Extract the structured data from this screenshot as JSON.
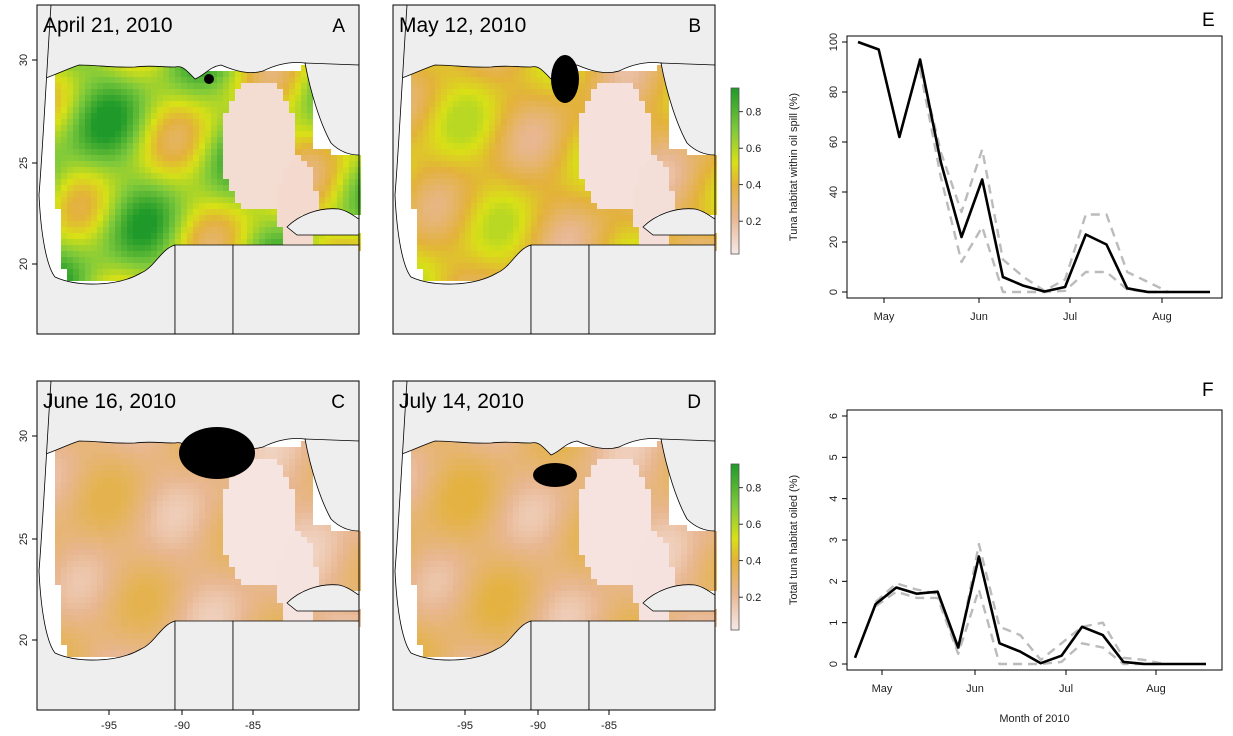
{
  "maps": {
    "panels": [
      {
        "id": "A",
        "label": "A",
        "date": "April 21, 2010",
        "intensity": 1.0,
        "spill": "tiny"
      },
      {
        "id": "B",
        "label": "B",
        "date": "May 12, 2010",
        "intensity": 0.62,
        "spill": "small"
      },
      {
        "id": "C",
        "label": "C",
        "date": "June 16, 2010",
        "intensity": 0.22,
        "spill": "large"
      },
      {
        "id": "D",
        "label": "D",
        "date": "July 14, 2010",
        "intensity": 0.24,
        "spill": "medium"
      }
    ],
    "lon_ticks": [
      "-95",
      "-90",
      "-85"
    ],
    "lat_ticks": [
      "30",
      "25",
      "20"
    ],
    "colorbar": {
      "ticks": [
        "0.8",
        "0.6",
        "0.4",
        "0.2"
      ],
      "colors": [
        "#f7e8e8",
        "#e7b58e",
        "#e3b042",
        "#d9e016",
        "#7ec93b",
        "#1f9a2a"
      ]
    },
    "colors": {
      "land": "#eeeeee",
      "water": "#ffffff",
      "spill": "#000000"
    }
  },
  "chart_data": [
    {
      "id": "E",
      "label": "E",
      "type": "line",
      "title": "",
      "xlabel": "",
      "ylabel": "Tuna habitat within oil spill (%)",
      "x_ticks": [
        "May",
        "Jun",
        "Jul",
        "Aug"
      ],
      "y_ticks": [
        0,
        20,
        40,
        60,
        80,
        100
      ],
      "ylim": [
        0,
        100
      ],
      "series": [
        {
          "role": "main",
          "color": "#000000",
          "dash": false,
          "points": [
            [
              0,
              100
            ],
            [
              1,
              97
            ],
            [
              2,
              62
            ],
            [
              3,
              93
            ],
            [
              4,
              52
            ],
            [
              5,
              22
            ],
            [
              6,
              45
            ],
            [
              7,
              6
            ],
            [
              8,
              2.5
            ],
            [
              9,
              0.2
            ],
            [
              10,
              2
            ],
            [
              11,
              23
            ],
            [
              12,
              19
            ],
            [
              13,
              1.5
            ],
            [
              14,
              0
            ],
            [
              15,
              0
            ],
            [
              16,
              0
            ],
            [
              17,
              0
            ]
          ]
        },
        {
          "role": "upper",
          "color": "#bbbbbb",
          "dash": true,
          "points": [
            [
              3,
              91
            ],
            [
              4,
              56
            ],
            [
              5,
              32
            ],
            [
              6,
              57
            ],
            [
              7,
              13
            ],
            [
              8,
              6
            ],
            [
              9,
              0.5
            ],
            [
              10,
              5
            ],
            [
              11,
              31
            ],
            [
              12,
              31
            ],
            [
              13,
              8
            ],
            [
              14,
              4
            ],
            [
              15,
              0
            ]
          ]
        },
        {
          "role": "lower",
          "color": "#bbbbbb",
          "dash": true,
          "points": [
            [
              3,
              89
            ],
            [
              4,
              46
            ],
            [
              5,
              12
            ],
            [
              6,
              26
            ],
            [
              7,
              0
            ],
            [
              8,
              0
            ],
            [
              9,
              0
            ],
            [
              10,
              0.5
            ],
            [
              11,
              8
            ],
            [
              12,
              8
            ],
            [
              13,
              1
            ],
            [
              14,
              0
            ],
            [
              15,
              0
            ]
          ]
        }
      ]
    },
    {
      "id": "F",
      "label": "F",
      "type": "line",
      "title": "",
      "xlabel": "Month of 2010",
      "ylabel": "Total tuna habitat oiled (%)",
      "x_ticks": [
        "May",
        "Jun",
        "Jul",
        "Aug"
      ],
      "y_ticks": [
        0,
        1,
        2,
        3,
        4,
        5,
        6
      ],
      "ylim": [
        0,
        6
      ],
      "series": [
        {
          "role": "main",
          "color": "#000000",
          "dash": false,
          "points": [
            [
              0,
              0.15
            ],
            [
              1,
              1.45
            ],
            [
              2,
              1.85
            ],
            [
              3,
              1.7
            ],
            [
              4,
              1.75
            ],
            [
              5,
              0.4
            ],
            [
              6,
              2.6
            ],
            [
              7,
              0.5
            ],
            [
              8,
              0.3
            ],
            [
              9,
              0.02
            ],
            [
              10,
              0.2
            ],
            [
              11,
              0.9
            ],
            [
              12,
              0.7
            ],
            [
              13,
              0.05
            ],
            [
              14,
              0
            ],
            [
              15,
              0
            ],
            [
              16,
              0
            ],
            [
              17,
              0
            ]
          ]
        },
        {
          "role": "upper",
          "color": "#bbbbbb",
          "dash": true,
          "points": [
            [
              1,
              1.5
            ],
            [
              2,
              1.95
            ],
            [
              3,
              1.8
            ],
            [
              4,
              1.7
            ],
            [
              5,
              0.3
            ],
            [
              6,
              2.9
            ],
            [
              7,
              0.9
            ],
            [
              8,
              0.7
            ],
            [
              9,
              0.1
            ],
            [
              10,
              0.5
            ],
            [
              11,
              0.9
            ],
            [
              12,
              1.0
            ],
            [
              13,
              0.15
            ],
            [
              14,
              0.1
            ],
            [
              15,
              0
            ]
          ]
        },
        {
          "role": "lower",
          "color": "#bbbbbb",
          "dash": true,
          "points": [
            [
              1,
              1.4
            ],
            [
              2,
              1.75
            ],
            [
              3,
              1.6
            ],
            [
              4,
              1.6
            ],
            [
              5,
              0.25
            ],
            [
              6,
              1.8
            ],
            [
              7,
              0
            ],
            [
              8,
              0
            ],
            [
              9,
              0
            ],
            [
              10,
              0.05
            ],
            [
              11,
              0.5
            ],
            [
              12,
              0.4
            ],
            [
              13,
              0
            ],
            [
              14,
              0
            ],
            [
              15,
              0
            ]
          ]
        }
      ]
    }
  ]
}
